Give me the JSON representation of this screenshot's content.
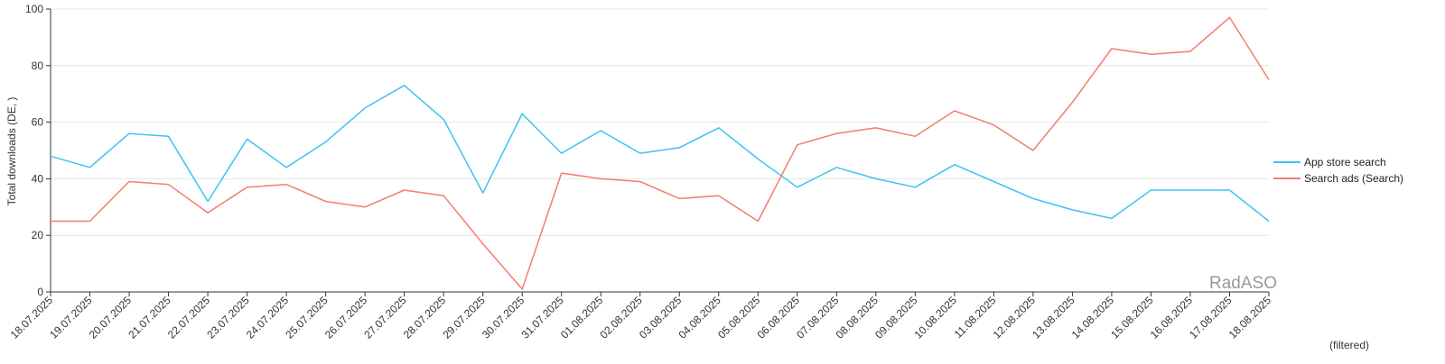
{
  "chart_data": {
    "type": "line",
    "ylabel": "Total downloads (DE, )",
    "ylim": [
      0,
      100
    ],
    "yticks": [
      0,
      20,
      40,
      60,
      80,
      100
    ],
    "grid": true,
    "legend_position": "right",
    "categories": [
      "18.07.2025",
      "19.07.2025",
      "20.07.2025",
      "21.07.2025",
      "22.07.2025",
      "23.07.2025",
      "24.07.2025",
      "25.07.2025",
      "26.07.2025",
      "27.07.2025",
      "28.07.2025",
      "29.07.2025",
      "30.07.2025",
      "31.07.2025",
      "01.08.2025",
      "02.08.2025",
      "03.08.2025",
      "04.08.2025",
      "05.08.2025",
      "06.08.2025",
      "07.08.2025",
      "08.08.2025",
      "09.08.2025",
      "10.08.2025",
      "11.08.2025",
      "12.08.2025",
      "13.08.2025",
      "14.08.2025",
      "15.08.2025",
      "16.08.2025",
      "17.08.2025",
      "18.08.2025"
    ],
    "series": [
      {
        "name": "App store search",
        "color": "#3ec3f3",
        "values": [
          48,
          44,
          56,
          55,
          32,
          54,
          44,
          53,
          65,
          73,
          61,
          35,
          63,
          49,
          57,
          49,
          51,
          58,
          47,
          37,
          44,
          40,
          37,
          45,
          39,
          33,
          29,
          26,
          36,
          36,
          36,
          25
        ]
      },
      {
        "name": "Search ads (Search)",
        "color": "#f47c6e",
        "values": [
          25,
          25,
          39,
          38,
          28,
          37,
          38,
          32,
          30,
          36,
          34,
          17,
          1,
          42,
          40,
          39,
          33,
          34,
          25,
          52,
          56,
          58,
          55,
          64,
          59,
          50,
          67,
          86,
          84,
          85,
          97,
          75
        ]
      }
    ]
  },
  "watermark": "RadASO",
  "footnote": "(filtered)"
}
